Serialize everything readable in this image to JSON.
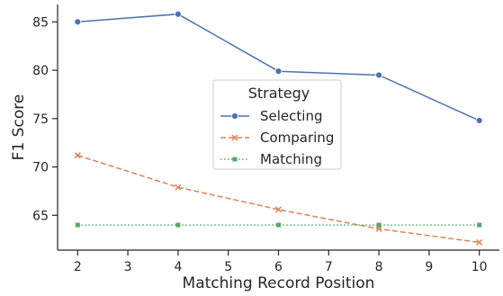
{
  "chart_data": {
    "type": "line",
    "xlabel": "Matching Record Position",
    "ylabel": "F1 Score",
    "xlim": [
      1.6,
      10.4
    ],
    "ylim": [
      61.4,
      86.8
    ],
    "xticks": [
      2,
      3,
      4,
      5,
      6,
      7,
      8,
      9,
      10
    ],
    "yticks": [
      65,
      70,
      75,
      80,
      85
    ],
    "grid": false,
    "legend": {
      "title": "Strategy",
      "placement": "center"
    },
    "x": [
      2,
      4,
      6,
      8,
      10
    ],
    "series": [
      {
        "name": "Selecting",
        "values": [
          85.0,
          85.8,
          79.9,
          79.5,
          74.8
        ],
        "color": "#4c72b0",
        "line_style": "solid",
        "marker": "circle"
      },
      {
        "name": "Comparing",
        "values": [
          71.2,
          67.9,
          65.6,
          63.6,
          62.2
        ],
        "color": "#dd8452",
        "line_style": "dashed",
        "marker": "x"
      },
      {
        "name": "Matching",
        "values": [
          64.0,
          64.0,
          64.0,
          64.0,
          64.0
        ],
        "color": "#55a868",
        "line_style": "dotted",
        "marker": "square"
      }
    ]
  }
}
